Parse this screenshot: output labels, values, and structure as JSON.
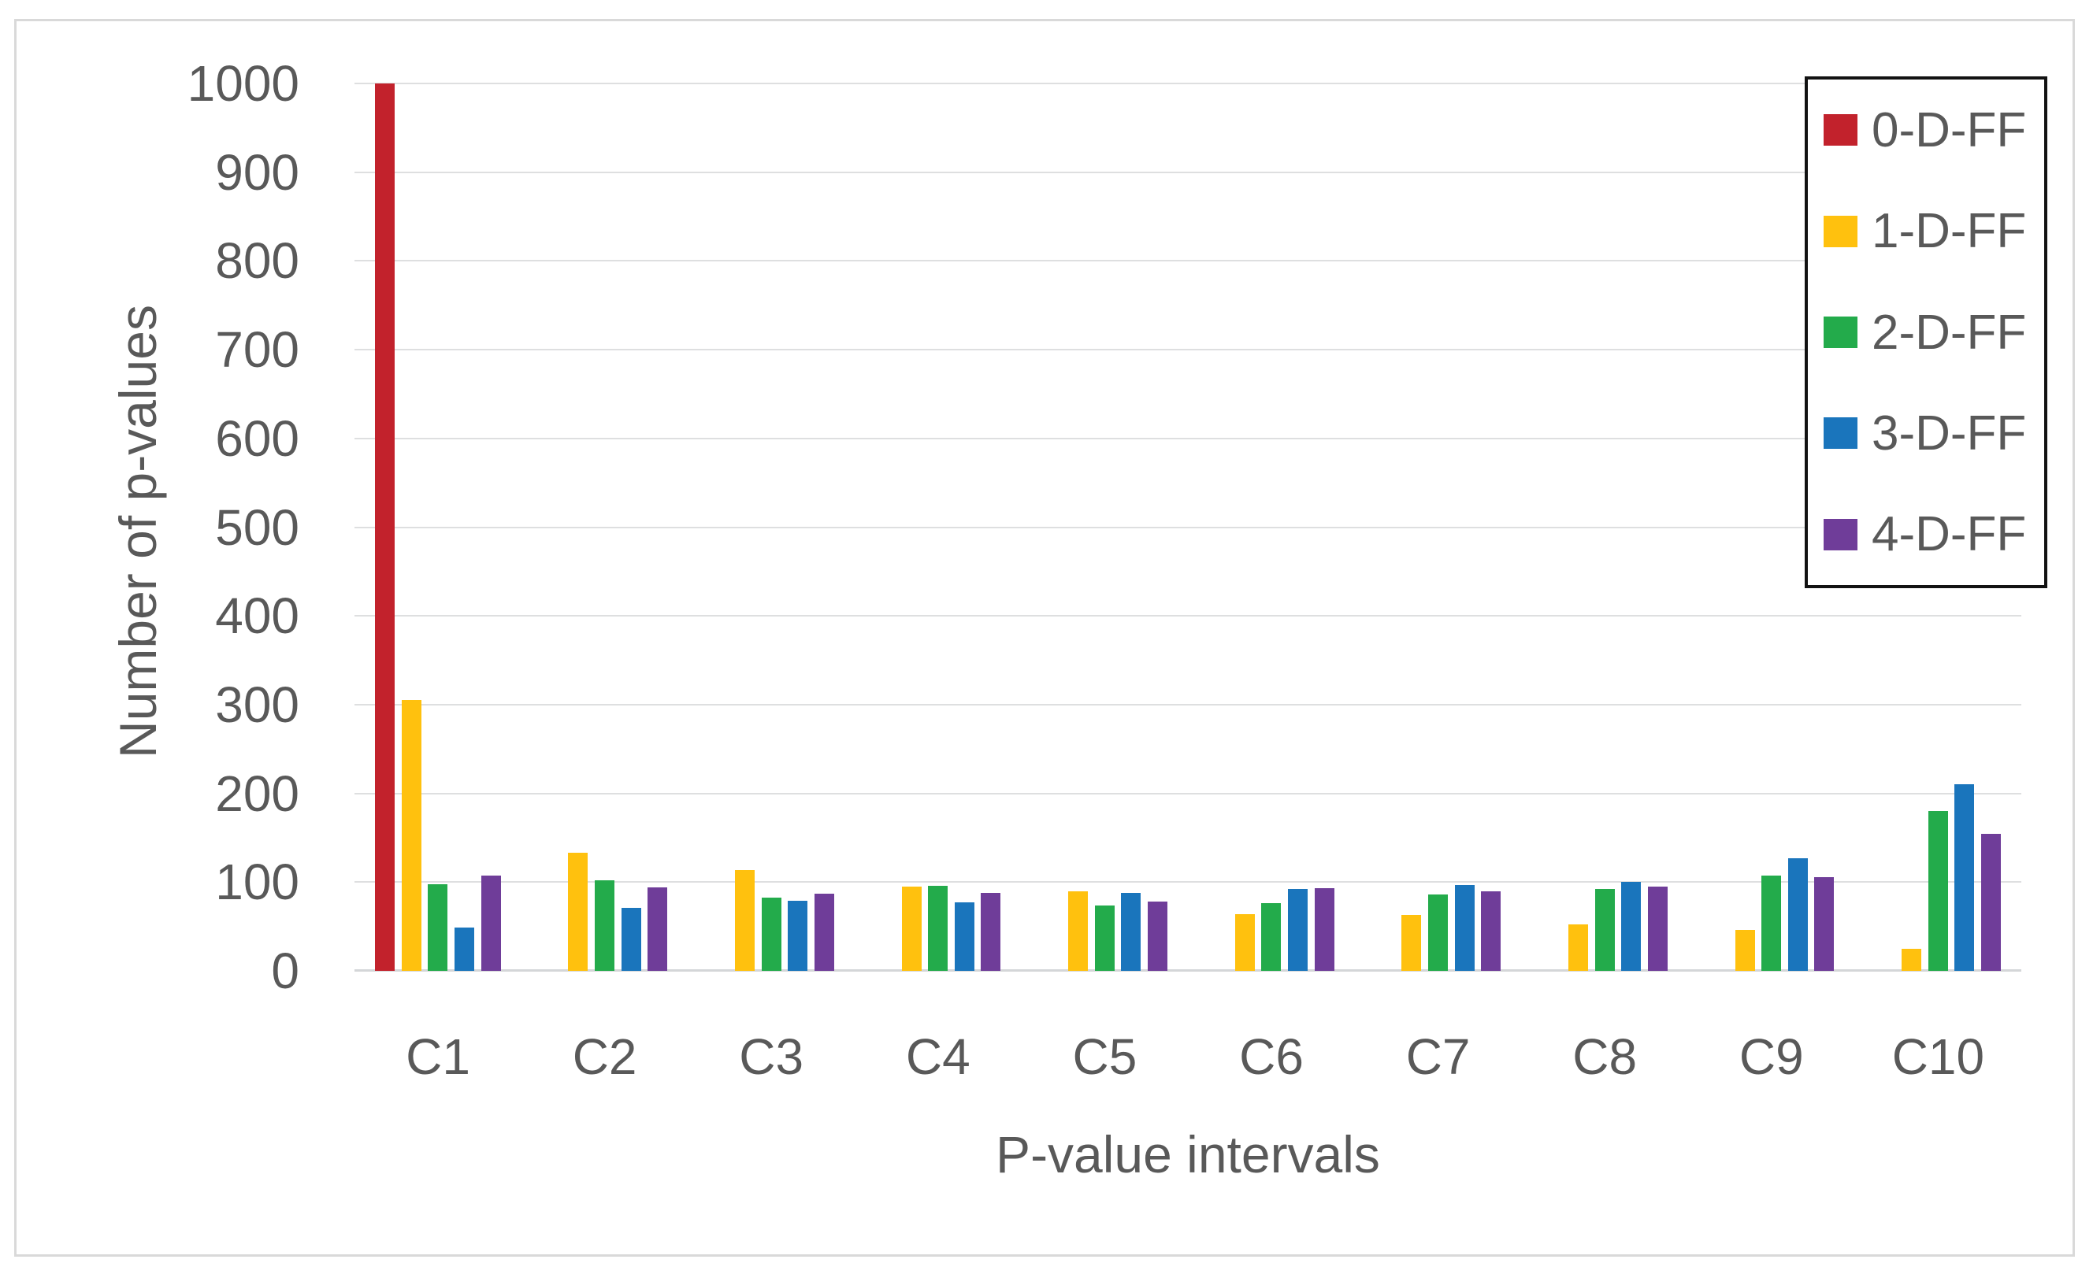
{
  "chart_data": {
    "type": "bar",
    "title": "",
    "xlabel": "P-value intervals",
    "ylabel": "Number of p-values",
    "categories": [
      "C1",
      "C2",
      "C3",
      "C4",
      "C5",
      "C6",
      "C7",
      "C8",
      "C9",
      "C10"
    ],
    "series": [
      {
        "name": "0-D-FF",
        "color": "#C2222C",
        "values": [
          1000,
          0,
          0,
          0,
          0,
          0,
          0,
          0,
          0,
          0
        ]
      },
      {
        "name": "1-D-FF",
        "color": "#FFC10E",
        "values": [
          305,
          133,
          114,
          95,
          90,
          64,
          63,
          52,
          46,
          25
        ]
      },
      {
        "name": "2-D-FF",
        "color": "#23AB4B",
        "values": [
          98,
          102,
          83,
          96,
          74,
          76,
          86,
          92,
          107,
          180
        ]
      },
      {
        "name": "3-D-FF",
        "color": "#1A75BC",
        "values": [
          49,
          71,
          79,
          77,
          88,
          92,
          97,
          100,
          127,
          210
        ]
      },
      {
        "name": "4-D-FF",
        "color": "#6F3D99",
        "values": [
          107,
          94,
          87,
          88,
          78,
          93,
          90,
          95,
          106,
          154
        ]
      }
    ],
    "ylim": [
      0,
      1000
    ],
    "yticks": [
      0,
      100,
      200,
      300,
      400,
      500,
      600,
      700,
      800,
      900,
      1000
    ],
    "grid": true,
    "legend_position": "top-right",
    "colors": {
      "text": "#595959",
      "gridline": "#DEDFE0",
      "figure_border": "#D9D9D9",
      "legend_border": "#121212",
      "background": "#FFFFFF"
    }
  }
}
